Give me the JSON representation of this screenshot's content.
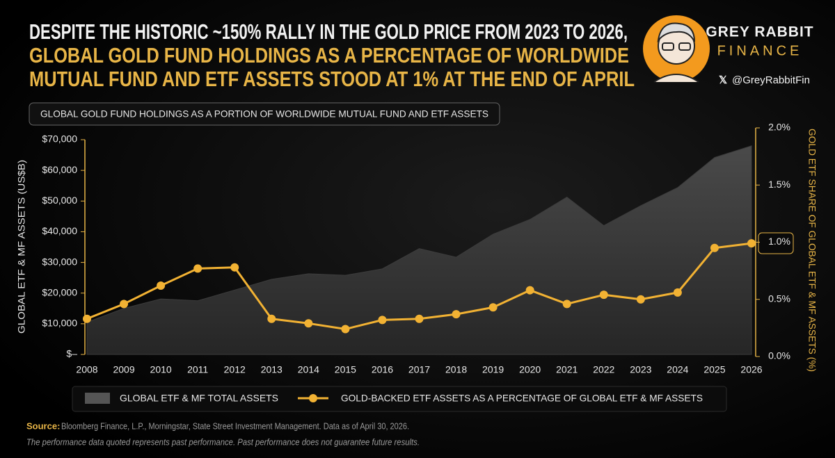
{
  "header": {
    "title_lines": [
      "DESPITE THE HISTORIC ~150% RALLY IN THE GOLD PRICE FROM 2023 TO 2026,",
      "GLOBAL GOLD FUND HOLDINGS AS A PERCENTAGE OF WORLDWIDE",
      "MUTUAL FUND AND ETF ASSETS STOOD AT 1% AT THE END OF APRIL"
    ],
    "brand": "GREY RABBIT",
    "brand_sub": "FINANCE",
    "handle": "@GreyRabbitFin"
  },
  "chart_data": {
    "type": "combo",
    "title": "GLOBAL GOLD FUND HOLDINGS AS A PORTION OF WORLDWIDE MUTUAL FUND AND ETF ASSETS",
    "y_label": "GLOBAL ETF & MF ASSETS (US$B)",
    "y2_label": "GOLD ETF SHARE OF GLOBAL ETF & MF ASSETS (%)",
    "categories": [
      "2008",
      "2009",
      "2010",
      "2011",
      "2012",
      "2013",
      "2014",
      "2015",
      "2016",
      "2017",
      "2018",
      "2019",
      "2020",
      "2021",
      "2022",
      "2023",
      "2024",
      "2025",
      "2026"
    ],
    "series": [
      {
        "name": "GLOBAL ETF & MF TOTAL ASSETS",
        "type": "area",
        "color": "#3c3c3c",
        "values": [
          10500,
          15000,
          18100,
          17500,
          21000,
          24500,
          26300,
          25800,
          27900,
          34500,
          31700,
          39200,
          44000,
          51300,
          42000,
          48500,
          54400,
          64200,
          68000
        ]
      },
      {
        "name": "GOLD-BACKED ETF ASSETS AS A PERCENTAGE OF GLOBAL ETF & MF ASSETS",
        "type": "line",
        "color": "#f2b233",
        "axis": "y2",
        "values": [
          0.33,
          0.46,
          0.62,
          0.77,
          0.78,
          0.33,
          0.29,
          0.24,
          0.32,
          0.33,
          0.37,
          0.43,
          0.58,
          0.46,
          0.54,
          0.5,
          0.56,
          0.95,
          0.99
        ]
      }
    ],
    "ylim": [
      0,
      70000
    ],
    "yticks": [
      {
        "value": 0,
        "label": "$–"
      },
      {
        "value": 10000,
        "label": "$10,000"
      },
      {
        "value": 20000,
        "label": "$20,000"
      },
      {
        "value": 30000,
        "label": "$30,000"
      },
      {
        "value": 40000,
        "label": "$40,000"
      },
      {
        "value": 50000,
        "label": "$50,000"
      },
      {
        "value": 60000,
        "label": "$60,000"
      },
      {
        "value": 70000,
        "label": "$70,000"
      }
    ],
    "y2lim": [
      0,
      2
    ],
    "y2ticks": [
      {
        "value": 0,
        "label": "0.0%"
      },
      {
        "value": 0.5,
        "label": "0.5%"
      },
      {
        "value": 1,
        "label": "1.0%"
      },
      {
        "value": 1.5,
        "label": "1.5%"
      },
      {
        "value": 2,
        "label": "2.0%"
      }
    ]
  },
  "footer": {
    "source_label": "Source:",
    "source": "Bloomberg Finance, L.P., Morningstar, State Street Investment Management. Data as of April 30, 2026.",
    "disclaimer": "The performance data quoted represents past performance. Past performance does not guarantee future results."
  }
}
